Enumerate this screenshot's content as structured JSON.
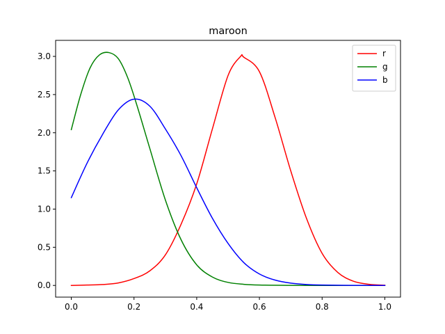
{
  "chart_data": {
    "type": "line",
    "title": "maroon",
    "xlabel": "",
    "ylabel": "",
    "xlim": [
      -0.05,
      1.05
    ],
    "ylim": [
      -0.153,
      3.21
    ],
    "x_ticks": [
      0.0,
      0.2,
      0.4,
      0.6,
      0.8,
      1.0
    ],
    "x_tick_labels": [
      "0.0",
      "0.2",
      "0.4",
      "0.6",
      "0.8",
      "1.0"
    ],
    "y_ticks": [
      0.0,
      0.5,
      1.0,
      1.5,
      2.0,
      2.5,
      3.0
    ],
    "y_tick_labels": [
      "0.0",
      "0.5",
      "1.0",
      "1.5",
      "2.0",
      "2.5",
      "3.0"
    ],
    "grid": false,
    "legend_position": "top-right",
    "series": [
      {
        "name": "r",
        "color": "#ff0000",
        "x": [
          0.0,
          0.05,
          0.1,
          0.15,
          0.2,
          0.25,
          0.3,
          0.35,
          0.4,
          0.45,
          0.5,
          0.54,
          0.55,
          0.6,
          0.65,
          0.7,
          0.75,
          0.8,
          0.85,
          0.9,
          0.95,
          1.0
        ],
        "y": [
          0.0,
          0.005,
          0.012,
          0.033,
          0.09,
          0.19,
          0.4,
          0.8,
          1.33,
          2.05,
          2.75,
          3.0,
          2.99,
          2.8,
          2.2,
          1.5,
          0.88,
          0.42,
          0.17,
          0.055,
          0.015,
          0.003
        ]
      },
      {
        "name": "g",
        "color": "#008000",
        "x": [
          0.0,
          0.03,
          0.06,
          0.09,
          0.12,
          0.15,
          0.18,
          0.21,
          0.25,
          0.3,
          0.35,
          0.4,
          0.45,
          0.5,
          0.55,
          0.6,
          0.7,
          0.8,
          0.9,
          1.0
        ],
        "y": [
          2.04,
          2.5,
          2.85,
          3.02,
          3.05,
          2.97,
          2.72,
          2.35,
          1.8,
          1.12,
          0.6,
          0.27,
          0.11,
          0.04,
          0.015,
          0.005,
          0.001,
          0.0,
          0.0,
          0.0
        ]
      },
      {
        "name": "b",
        "color": "#0000ff",
        "x": [
          0.0,
          0.05,
          0.1,
          0.15,
          0.2,
          0.25,
          0.3,
          0.35,
          0.4,
          0.45,
          0.5,
          0.55,
          0.6,
          0.65,
          0.7,
          0.75,
          0.8,
          0.9,
          1.0
        ],
        "y": [
          1.15,
          1.6,
          1.98,
          2.3,
          2.44,
          2.35,
          2.05,
          1.7,
          1.28,
          0.88,
          0.55,
          0.3,
          0.15,
          0.07,
          0.03,
          0.012,
          0.005,
          0.001,
          0.0
        ]
      }
    ]
  }
}
